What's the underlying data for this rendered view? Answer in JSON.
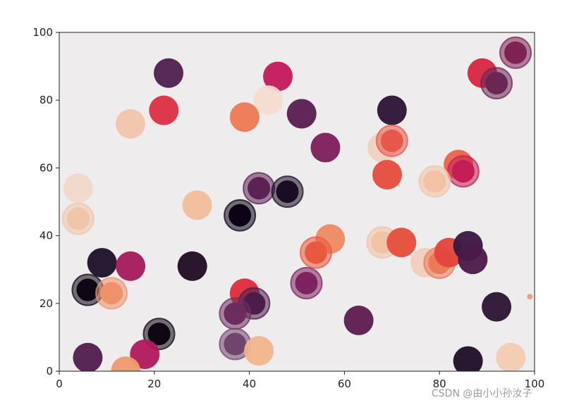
{
  "chart_data": {
    "type": "scatter",
    "title": "",
    "xlabel": "",
    "ylabel": "",
    "xlim": [
      0,
      100
    ],
    "ylim": [
      0,
      100
    ],
    "xticks": [
      0,
      20,
      40,
      60,
      80,
      100
    ],
    "yticks": [
      0,
      20,
      40,
      60,
      80,
      100
    ],
    "xtick_labels": [
      "0",
      "20",
      "40",
      "60",
      "80",
      "100"
    ],
    "ytick_labels": [
      "0",
      "20",
      "40",
      "60",
      "80",
      "100"
    ],
    "grid": false,
    "background": "#eeecec",
    "points": [
      {
        "x": 23,
        "y": 88,
        "size": "large",
        "color": "#4d1f4f"
      },
      {
        "x": 46,
        "y": 87,
        "size": "large",
        "color": "#c3185a"
      },
      {
        "x": 44,
        "y": 80,
        "size": "large",
        "color": "#f3ddd0"
      },
      {
        "x": 22,
        "y": 77,
        "size": "large",
        "color": "#dc2e43"
      },
      {
        "x": 15,
        "y": 73,
        "size": "large",
        "color": "#f0c5ac"
      },
      {
        "x": 39,
        "y": 75,
        "size": "large",
        "color": "#ea7a53"
      },
      {
        "x": 51,
        "y": 76,
        "size": "large",
        "color": "#5a1c51"
      },
      {
        "x": 70,
        "y": 77,
        "size": "large",
        "color": "#2a1234"
      },
      {
        "x": 89,
        "y": 88,
        "size": "large",
        "color": "#d7263f"
      },
      {
        "x": 92,
        "y": 85,
        "size": "large",
        "color": "#6a2755",
        "ring": true
      },
      {
        "x": 96,
        "y": 94,
        "size": "large",
        "color": "#7e2153",
        "ring": true
      },
      {
        "x": 56,
        "y": 66,
        "size": "large",
        "color": "#7c1d5c"
      },
      {
        "x": 68,
        "y": 66,
        "size": "large",
        "color": "#f0d2c1"
      },
      {
        "x": 70,
        "y": 68,
        "size": "large",
        "color": "#e6584a",
        "ring": true
      },
      {
        "x": 84,
        "y": 61,
        "size": "large",
        "color": "#e8644a"
      },
      {
        "x": 85,
        "y": 59,
        "size": "large",
        "color": "#c41d56",
        "ring": true
      },
      {
        "x": 69,
        "y": 58,
        "size": "large",
        "color": "#e54c3c"
      },
      {
        "x": 79,
        "y": 56,
        "size": "large",
        "color": "#f3c2a6",
        "ring": true
      },
      {
        "x": 4,
        "y": 54,
        "size": "large",
        "color": "#f1d8cc"
      },
      {
        "x": 4,
        "y": 45,
        "size": "large",
        "color": "#f0c5aa",
        "ring": true
      },
      {
        "x": 29,
        "y": 49,
        "size": "large",
        "color": "#f0be9a"
      },
      {
        "x": 42,
        "y": 54,
        "size": "large",
        "color": "#5a2255",
        "ring": true
      },
      {
        "x": 48,
        "y": 53,
        "size": "large",
        "color": "#1a0d24",
        "ring": true
      },
      {
        "x": 38,
        "y": 46,
        "size": "large",
        "color": "#0b0416",
        "ring": true
      },
      {
        "x": 57,
        "y": 39,
        "size": "large",
        "color": "#ec8a63"
      },
      {
        "x": 54,
        "y": 35,
        "size": "large",
        "color": "#e85a3f",
        "ring": true
      },
      {
        "x": 68,
        "y": 38,
        "size": "large",
        "color": "#f1c2a5",
        "ring": true
      },
      {
        "x": 72,
        "y": 38,
        "size": "large",
        "color": "#e54d3a"
      },
      {
        "x": 77,
        "y": 32,
        "size": "large",
        "color": "#f0cfbd"
      },
      {
        "x": 80,
        "y": 32,
        "size": "large",
        "color": "#ec7a58",
        "ring": true
      },
      {
        "x": 82,
        "y": 35,
        "size": "large",
        "color": "#e1433d"
      },
      {
        "x": 86,
        "y": 37,
        "size": "large",
        "color": "#3a1641"
      },
      {
        "x": 87,
        "y": 33,
        "size": "large",
        "color": "#4a1948"
      },
      {
        "x": 9,
        "y": 32,
        "size": "large",
        "color": "#1d0f2a"
      },
      {
        "x": 15,
        "y": 31,
        "size": "large",
        "color": "#a3195b"
      },
      {
        "x": 28,
        "y": 31,
        "size": "large",
        "color": "#1d0d22"
      },
      {
        "x": 6,
        "y": 24,
        "size": "large",
        "color": "#0e0716",
        "ring": true
      },
      {
        "x": 11,
        "y": 23,
        "size": "large",
        "color": "#ee926b",
        "ring": true
      },
      {
        "x": 39,
        "y": 23,
        "size": "large",
        "color": "#dd2c3d"
      },
      {
        "x": 41,
        "y": 20,
        "size": "large",
        "color": "#4c1d4b",
        "ring": true
      },
      {
        "x": 37,
        "y": 17,
        "size": "large",
        "color": "#6c2d5e",
        "ring": true
      },
      {
        "x": 52,
        "y": 26,
        "size": "large",
        "color": "#7e2260",
        "ring": true
      },
      {
        "x": 63,
        "y": 15,
        "size": "large",
        "color": "#5b1b4f"
      },
      {
        "x": 92,
        "y": 19,
        "size": "large",
        "color": "#2a1233"
      },
      {
        "x": 99,
        "y": 22,
        "size": "tiny",
        "color": "#f08a6a"
      },
      {
        "x": 21,
        "y": 11,
        "size": "large",
        "color": "#0e0714",
        "ring": true
      },
      {
        "x": 37,
        "y": 8,
        "size": "large",
        "color": "#71456d",
        "ring": true
      },
      {
        "x": 6,
        "y": 4,
        "size": "large",
        "color": "#4f1c4e"
      },
      {
        "x": 18,
        "y": 5,
        "size": "large",
        "color": "#b0185b"
      },
      {
        "x": 14,
        "y": 0,
        "size": "large",
        "color": "#ee9a6d"
      },
      {
        "x": 42,
        "y": 6,
        "size": "large",
        "color": "#f0b58c"
      },
      {
        "x": 86,
        "y": 3,
        "size": "large",
        "color": "#1d0d27"
      },
      {
        "x": 95,
        "y": 4,
        "size": "large",
        "color": "#f2ccb2"
      }
    ]
  },
  "watermark": {
    "text": "CSDN @由小小孙汝子",
    "color": "#9a9a9a"
  }
}
